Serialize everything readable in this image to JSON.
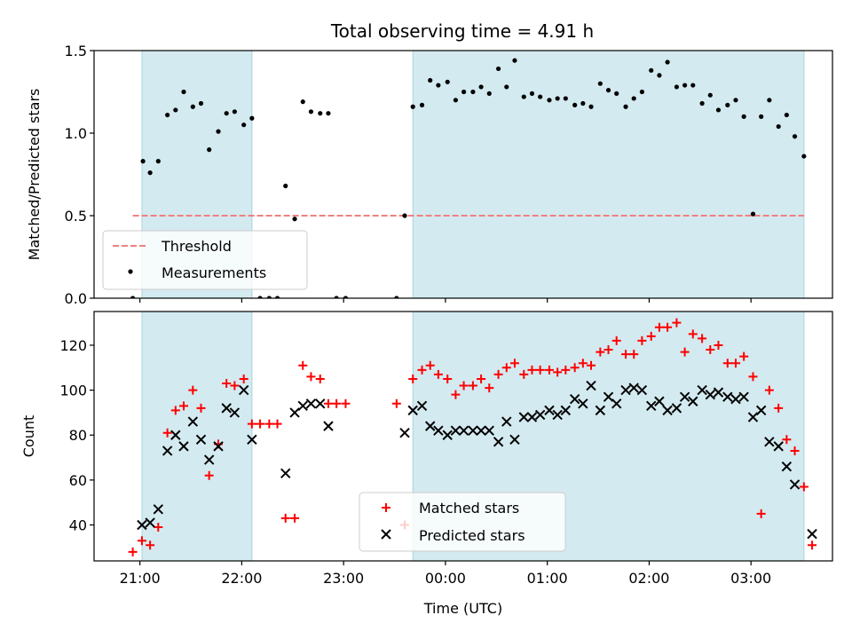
{
  "colors": {
    "shade": "#d3eaf0",
    "shade_edge": "#a8d4df",
    "threshold": "#f08080",
    "measurement": "#000000",
    "matched": "#ff0000",
    "predicted": "#000000"
  },
  "chart_data": [
    {
      "type": "scatter",
      "title": "Total observing time = 4.91 h",
      "xlabel": "",
      "ylabel": "Matched/Predicted stars",
      "ylim": [
        0,
        1.5
      ],
      "yticks": [
        0,
        0.5,
        1.0,
        1.5
      ],
      "ytick_labels": [
        "0.0",
        "0.5",
        "1.0",
        "1.5"
      ],
      "xlim_hours": [
        20.55,
        27.8
      ],
      "xticks_hours": [
        21,
        22,
        23,
        24,
        25,
        26,
        27
      ],
      "xtick_labels": [
        "",
        "",
        "",
        "",
        "",
        "",
        ""
      ],
      "shaded_intervals_hours": [
        [
          21.02,
          22.1
        ],
        [
          23.68,
          27.52
        ]
      ],
      "threshold": {
        "name": "Threshold",
        "y": 0.5,
        "x_range_hours": [
          20.93,
          27.52
        ]
      },
      "legend": {
        "placement": "lower-left",
        "entries": [
          "Threshold",
          "Measurements"
        ]
      },
      "series": [
        {
          "name": "Measurements",
          "points": [
            [
              20.93,
              0.0
            ],
            [
              21.03,
              0.83
            ],
            [
              21.1,
              0.76
            ],
            [
              21.18,
              0.83
            ],
            [
              21.27,
              1.11
            ],
            [
              21.35,
              1.14
            ],
            [
              21.43,
              1.25
            ],
            [
              21.52,
              1.16
            ],
            [
              21.6,
              1.18
            ],
            [
              21.68,
              0.9
            ],
            [
              21.77,
              1.01
            ],
            [
              21.85,
              1.12
            ],
            [
              21.93,
              1.13
            ],
            [
              22.02,
              1.05
            ],
            [
              22.1,
              1.09
            ],
            [
              22.18,
              0.0
            ],
            [
              22.27,
              0.0
            ],
            [
              22.35,
              0.0
            ],
            [
              22.43,
              0.68
            ],
            [
              22.52,
              0.48
            ],
            [
              22.6,
              1.19
            ],
            [
              22.68,
              1.13
            ],
            [
              22.77,
              1.12
            ],
            [
              22.85,
              1.12
            ],
            [
              22.93,
              0.0
            ],
            [
              23.02,
              0.0
            ],
            [
              23.52,
              0.0
            ],
            [
              23.6,
              0.5
            ],
            [
              23.68,
              1.16
            ],
            [
              23.77,
              1.17
            ],
            [
              23.85,
              1.32
            ],
            [
              23.93,
              1.29
            ],
            [
              24.02,
              1.31
            ],
            [
              24.1,
              1.2
            ],
            [
              24.18,
              1.25
            ],
            [
              24.27,
              1.25
            ],
            [
              24.35,
              1.28
            ],
            [
              24.43,
              1.24
            ],
            [
              24.52,
              1.39
            ],
            [
              24.6,
              1.28
            ],
            [
              24.68,
              1.44
            ],
            [
              24.77,
              1.22
            ],
            [
              24.85,
              1.24
            ],
            [
              24.93,
              1.22
            ],
            [
              25.02,
              1.2
            ],
            [
              25.1,
              1.21
            ],
            [
              25.18,
              1.21
            ],
            [
              25.27,
              1.17
            ],
            [
              25.35,
              1.18
            ],
            [
              25.43,
              1.16
            ],
            [
              25.52,
              1.3
            ],
            [
              25.6,
              1.26
            ],
            [
              25.68,
              1.24
            ],
            [
              25.77,
              1.16
            ],
            [
              25.85,
              1.21
            ],
            [
              25.93,
              1.25
            ],
            [
              26.02,
              1.38
            ],
            [
              26.1,
              1.35
            ],
            [
              26.18,
              1.43
            ],
            [
              26.27,
              1.28
            ],
            [
              26.35,
              1.29
            ],
            [
              26.43,
              1.29
            ],
            [
              26.52,
              1.18
            ],
            [
              26.6,
              1.23
            ],
            [
              26.68,
              1.14
            ],
            [
              26.77,
              1.17
            ],
            [
              26.85,
              1.2
            ],
            [
              26.93,
              1.1
            ],
            [
              27.02,
              0.51
            ],
            [
              27.1,
              1.1
            ],
            [
              27.18,
              1.2
            ],
            [
              27.27,
              1.04
            ],
            [
              27.35,
              1.11
            ],
            [
              27.43,
              0.98
            ],
            [
              27.52,
              0.86
            ]
          ]
        }
      ]
    },
    {
      "type": "scatter",
      "title": "",
      "xlabel": "Time (UTC)",
      "ylabel": "Count",
      "ylim": [
        24,
        135
      ],
      "yticks": [
        40,
        60,
        80,
        100,
        120
      ],
      "ytick_labels": [
        "40",
        "60",
        "80",
        "100",
        "120"
      ],
      "xlim_hours": [
        20.55,
        27.8
      ],
      "xticks_hours": [
        21,
        22,
        23,
        24,
        25,
        26,
        27
      ],
      "xtick_labels": [
        "21:00",
        "22:00",
        "23:00",
        "00:00",
        "01:00",
        "02:00",
        "03:00"
      ],
      "shaded_intervals_hours": [
        [
          21.02,
          22.1
        ],
        [
          23.68,
          27.52
        ]
      ],
      "legend": {
        "placement": "lower-center",
        "entries": [
          "Matched stars",
          "Predicted stars"
        ]
      },
      "series": [
        {
          "name": "Matched stars",
          "marker": "plus",
          "points": [
            [
              20.93,
              28
            ],
            [
              21.02,
              33
            ],
            [
              21.1,
              31
            ],
            [
              21.18,
              39
            ],
            [
              21.27,
              81
            ],
            [
              21.35,
              91
            ],
            [
              21.43,
              93
            ],
            [
              21.52,
              100
            ],
            [
              21.6,
              92
            ],
            [
              21.68,
              62
            ],
            [
              21.77,
              76
            ],
            [
              21.85,
              103
            ],
            [
              21.93,
              102
            ],
            [
              22.02,
              105
            ],
            [
              22.1,
              85
            ],
            [
              22.18,
              85
            ],
            [
              22.27,
              85
            ],
            [
              22.35,
              85
            ],
            [
              22.43,
              43
            ],
            [
              22.52,
              43
            ],
            [
              22.6,
              111
            ],
            [
              22.68,
              106
            ],
            [
              22.77,
              105
            ],
            [
              22.85,
              94
            ],
            [
              22.93,
              94
            ],
            [
              23.02,
              94
            ],
            [
              23.52,
              94
            ],
            [
              23.6,
              40
            ],
            [
              23.68,
              105
            ],
            [
              23.77,
              109
            ],
            [
              23.85,
              111
            ],
            [
              23.93,
              107
            ],
            [
              24.02,
              105
            ],
            [
              24.1,
              98
            ],
            [
              24.18,
              102
            ],
            [
              24.27,
              102
            ],
            [
              24.35,
              105
            ],
            [
              24.43,
              101
            ],
            [
              24.52,
              107
            ],
            [
              24.6,
              110
            ],
            [
              24.68,
              112
            ],
            [
              24.77,
              107
            ],
            [
              24.85,
              109
            ],
            [
              24.93,
              109
            ],
            [
              25.02,
              109
            ],
            [
              25.1,
              108
            ],
            [
              25.18,
              109
            ],
            [
              25.27,
              110
            ],
            [
              25.35,
              112
            ],
            [
              25.43,
              111
            ],
            [
              25.52,
              117
            ],
            [
              25.6,
              118
            ],
            [
              25.68,
              122
            ],
            [
              25.77,
              116
            ],
            [
              25.85,
              116
            ],
            [
              25.93,
              122
            ],
            [
              26.02,
              124
            ],
            [
              26.1,
              128
            ],
            [
              26.18,
              128
            ],
            [
              26.27,
              130
            ],
            [
              26.35,
              117
            ],
            [
              26.43,
              125
            ],
            [
              26.52,
              123
            ],
            [
              26.6,
              118
            ],
            [
              26.68,
              120
            ],
            [
              26.77,
              112
            ],
            [
              26.85,
              112
            ],
            [
              26.93,
              115
            ],
            [
              27.02,
              106
            ],
            [
              27.1,
              45
            ],
            [
              27.18,
              100
            ],
            [
              27.27,
              92
            ],
            [
              27.35,
              78
            ],
            [
              27.43,
              73
            ],
            [
              27.52,
              57
            ],
            [
              27.6,
              31
            ]
          ]
        },
        {
          "name": "Predicted stars",
          "marker": "x",
          "points": [
            [
              21.02,
              40
            ],
            [
              21.1,
              41
            ],
            [
              21.18,
              47
            ],
            [
              21.27,
              73
            ],
            [
              21.35,
              80
            ],
            [
              21.43,
              75
            ],
            [
              21.52,
              86
            ],
            [
              21.6,
              78
            ],
            [
              21.68,
              69
            ],
            [
              21.77,
              75
            ],
            [
              21.85,
              92
            ],
            [
              21.93,
              90
            ],
            [
              22.02,
              100
            ],
            [
              22.1,
              78
            ],
            [
              22.43,
              63
            ],
            [
              22.52,
              90
            ],
            [
              22.6,
              93
            ],
            [
              22.68,
              94
            ],
            [
              22.77,
              94
            ],
            [
              22.85,
              84
            ],
            [
              23.6,
              81
            ],
            [
              23.68,
              91
            ],
            [
              23.77,
              93
            ],
            [
              23.85,
              84
            ],
            [
              23.93,
              82
            ],
            [
              24.02,
              80
            ],
            [
              24.1,
              82
            ],
            [
              24.18,
              82
            ],
            [
              24.27,
              82
            ],
            [
              24.35,
              82
            ],
            [
              24.43,
              82
            ],
            [
              24.52,
              77
            ],
            [
              24.6,
              86
            ],
            [
              24.68,
              78
            ],
            [
              24.77,
              88
            ],
            [
              24.85,
              88
            ],
            [
              24.93,
              89
            ],
            [
              25.02,
              91
            ],
            [
              25.1,
              89
            ],
            [
              25.18,
              91
            ],
            [
              25.27,
              96
            ],
            [
              25.35,
              94
            ],
            [
              25.43,
              102
            ],
            [
              25.52,
              91
            ],
            [
              25.6,
              97
            ],
            [
              25.68,
              94
            ],
            [
              25.77,
              100
            ],
            [
              25.85,
              101
            ],
            [
              25.93,
              100
            ],
            [
              26.02,
              93
            ],
            [
              26.1,
              95
            ],
            [
              26.18,
              91
            ],
            [
              26.27,
              92
            ],
            [
              26.35,
              97
            ],
            [
              26.43,
              95
            ],
            [
              26.52,
              100
            ],
            [
              26.6,
              98
            ],
            [
              26.68,
              99
            ],
            [
              26.77,
              97
            ],
            [
              26.85,
              96
            ],
            [
              26.93,
              97
            ],
            [
              27.02,
              88
            ],
            [
              27.1,
              91
            ],
            [
              27.18,
              77
            ],
            [
              27.27,
              75
            ],
            [
              27.35,
              66
            ],
            [
              27.43,
              58
            ],
            [
              27.6,
              36
            ]
          ]
        }
      ]
    }
  ]
}
